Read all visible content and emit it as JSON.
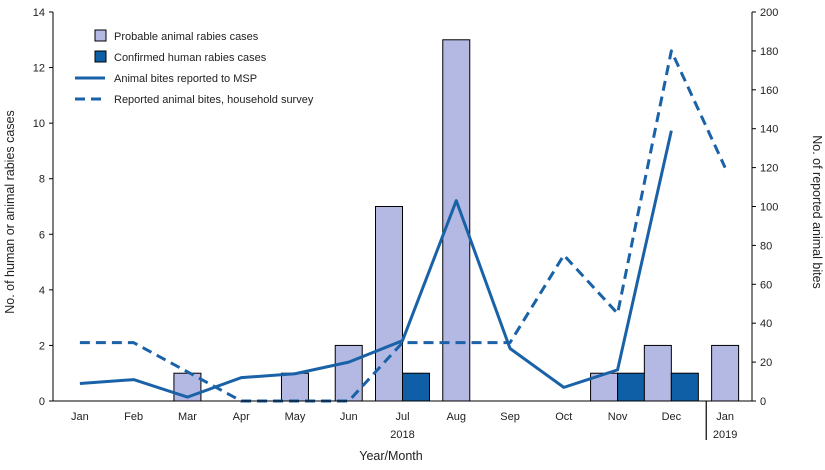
{
  "chart_data": {
    "type": "bar",
    "categories": [
      "Jan",
      "Feb",
      "Mar",
      "Apr",
      "May",
      "Jun",
      "Jul",
      "Aug",
      "Sep",
      "Oct",
      "Nov",
      "Dec",
      "Jan"
    ],
    "year_labels": [
      "2018",
      "2019"
    ],
    "xlabel": "Year/Month",
    "ylabel_left": "No. of human or animal rabies cases",
    "ylabel_right": "No. of reported animal bites",
    "ylim_left": [
      0,
      14
    ],
    "ylim_right": [
      0,
      200
    ],
    "yticks_left": [
      "0",
      "2",
      "4",
      "6",
      "8",
      "10",
      "12",
      "14"
    ],
    "yticks_right": [
      "0",
      "20",
      "40",
      "60",
      "80",
      "100",
      "120",
      "140",
      "160",
      "180",
      "200"
    ],
    "grid": false,
    "legend_position": "top-left",
    "series": [
      {
        "name": "Probable animal rabies cases",
        "kind": "bar",
        "axis": "left",
        "color": "#b3b9e3",
        "values": [
          0,
          0,
          1,
          0,
          1,
          2,
          7,
          13,
          0,
          0,
          1,
          2,
          2
        ]
      },
      {
        "name": "Confirmed human rabies cases",
        "kind": "bar",
        "axis": "left",
        "color": "#0f5fa6",
        "values": [
          0,
          0,
          0,
          0,
          0,
          0,
          1,
          0,
          0,
          0,
          1,
          1,
          0
        ]
      },
      {
        "name": "Animal bites reported to MSP",
        "kind": "line",
        "style": "solid",
        "axis": "right",
        "color": "#1a62a8",
        "values": [
          9,
          11,
          2,
          12,
          14,
          20,
          31,
          103,
          27,
          7,
          16,
          139,
          null
        ]
      },
      {
        "name": "Reported animal bites, household survey",
        "kind": "line",
        "style": "dashed",
        "axis": "right",
        "color": "#1a62a8",
        "values": [
          30,
          30,
          15,
          0,
          0,
          0,
          30,
          30,
          30,
          75,
          45,
          180,
          120
        ]
      }
    ]
  }
}
